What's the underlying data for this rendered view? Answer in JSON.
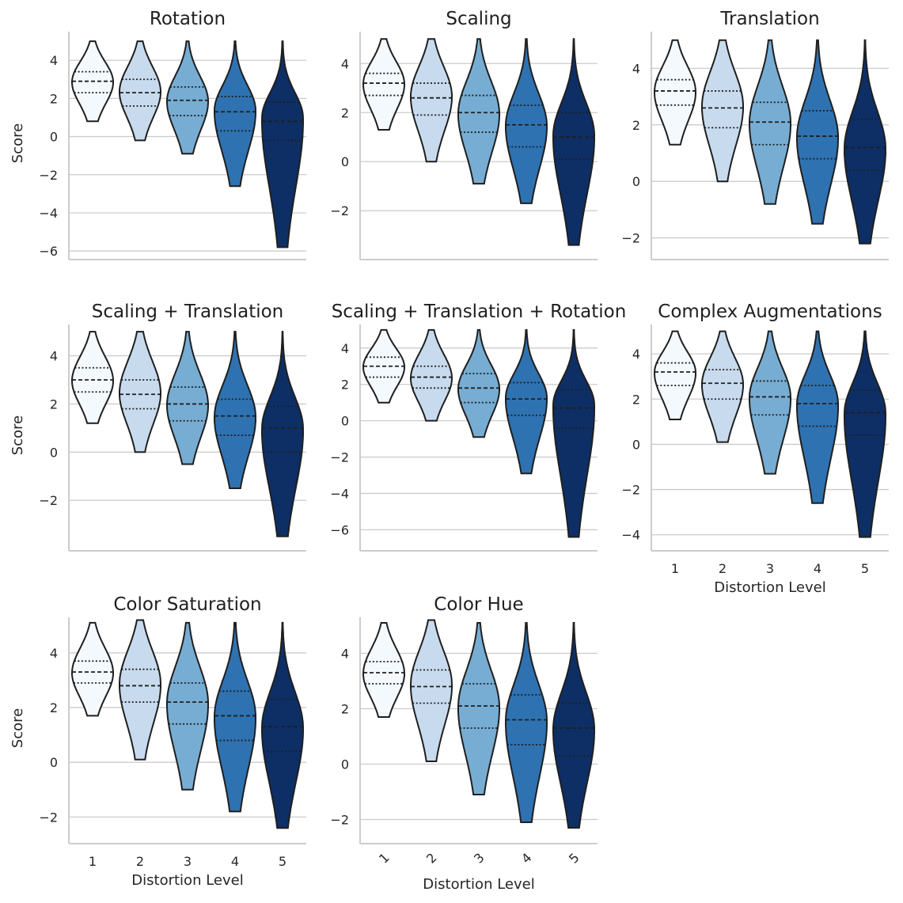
{
  "chart_data": {
    "type": "violin",
    "xlabel": "Distortion Level",
    "ylabel": "Score",
    "categories": [
      "1",
      "2",
      "3",
      "4",
      "5"
    ],
    "palette": [
      "#f4f9fe",
      "#c8dbee",
      "#77add3",
      "#2f72b1",
      "#0d2f66"
    ],
    "outline_color": "#1f1f1f",
    "grid_color": "#cccccc",
    "panels": [
      {
        "title": "Rotation",
        "ylim": [
          -6.2,
          5.5
        ],
        "yticks": [
          -6,
          -4,
          -2,
          0,
          2,
          4
        ],
        "show_ylabel": true,
        "show_xticks": false,
        "violins": [
          {
            "min": 0.8,
            "max": 5.0,
            "q1": 2.3,
            "median": 2.9,
            "q3": 3.4,
            "mode": 2.9
          },
          {
            "min": -0.2,
            "max": 5.0,
            "q1": 1.6,
            "median": 2.3,
            "q3": 3.0,
            "mode": 2.4
          },
          {
            "min": -0.9,
            "max": 5.0,
            "q1": 1.1,
            "median": 1.9,
            "q3": 2.6,
            "mode": 1.9
          },
          {
            "min": -2.6,
            "max": 5.0,
            "q1": 0.3,
            "median": 1.3,
            "q3": 2.1,
            "mode": 1.4
          },
          {
            "min": -5.8,
            "max": 5.0,
            "q1": -0.2,
            "median": 0.8,
            "q3": 1.8,
            "mode": 1.0
          }
        ]
      },
      {
        "title": "Scaling",
        "ylim": [
          -3.8,
          5.3
        ],
        "yticks": [
          -2,
          0,
          2,
          4
        ],
        "show_ylabel": false,
        "show_xticks": false,
        "violins": [
          {
            "min": 1.3,
            "max": 5.0,
            "q1": 2.7,
            "median": 3.2,
            "q3": 3.6,
            "mode": 3.2
          },
          {
            "min": 0.0,
            "max": 5.0,
            "q1": 1.9,
            "median": 2.6,
            "q3": 3.2,
            "mode": 2.7
          },
          {
            "min": -0.9,
            "max": 5.0,
            "q1": 1.2,
            "median": 2.0,
            "q3": 2.7,
            "mode": 2.0
          },
          {
            "min": -1.7,
            "max": 5.0,
            "q1": 0.6,
            "median": 1.5,
            "q3": 2.3,
            "mode": 1.5
          },
          {
            "min": -3.4,
            "max": 5.0,
            "q1": 0.1,
            "median": 1.0,
            "q3": 2.0,
            "mode": 1.1
          }
        ]
      },
      {
        "title": "Translation",
        "ylim": [
          -2.6,
          5.3
        ],
        "yticks": [
          -2,
          0,
          2,
          4
        ],
        "show_ylabel": false,
        "show_xticks": false,
        "violins": [
          {
            "min": 1.3,
            "max": 5.0,
            "q1": 2.7,
            "median": 3.2,
            "q3": 3.6,
            "mode": 3.2
          },
          {
            "min": 0.0,
            "max": 5.0,
            "q1": 1.9,
            "median": 2.6,
            "q3": 3.2,
            "mode": 2.7
          },
          {
            "min": -0.8,
            "max": 5.0,
            "q1": 1.3,
            "median": 2.1,
            "q3": 2.8,
            "mode": 2.1
          },
          {
            "min": -1.5,
            "max": 5.0,
            "q1": 0.8,
            "median": 1.6,
            "q3": 2.5,
            "mode": 1.6
          },
          {
            "min": -2.2,
            "max": 5.0,
            "q1": 0.4,
            "median": 1.2,
            "q3": 2.2,
            "mode": 1.2
          }
        ]
      },
      {
        "title": "Scaling + Translation",
        "ylim": [
          -3.9,
          5.3
        ],
        "yticks": [
          -2,
          0,
          2,
          4
        ],
        "show_ylabel": true,
        "show_xticks": false,
        "violins": [
          {
            "min": 1.2,
            "max": 5.0,
            "q1": 2.5,
            "median": 3.0,
            "q3": 3.5,
            "mode": 3.0
          },
          {
            "min": 0.0,
            "max": 5.0,
            "q1": 1.8,
            "median": 2.4,
            "q3": 3.0,
            "mode": 2.5
          },
          {
            "min": -0.5,
            "max": 5.0,
            "q1": 1.3,
            "median": 2.0,
            "q3": 2.7,
            "mode": 2.0
          },
          {
            "min": -1.5,
            "max": 5.0,
            "q1": 0.7,
            "median": 1.5,
            "q3": 2.2,
            "mode": 1.5
          },
          {
            "min": -3.5,
            "max": 5.0,
            "q1": 0.0,
            "median": 1.0,
            "q3": 1.9,
            "mode": 1.0
          }
        ]
      },
      {
        "title": "Scaling + Translation + Rotation",
        "ylim": [
          -6.9,
          5.3
        ],
        "yticks": [
          -6,
          -4,
          -2,
          0,
          2,
          4
        ],
        "show_ylabel": false,
        "show_xticks": false,
        "violins": [
          {
            "min": 1.0,
            "max": 5.0,
            "q1": 2.4,
            "median": 3.0,
            "q3": 3.5,
            "mode": 3.0
          },
          {
            "min": 0.0,
            "max": 5.0,
            "q1": 1.8,
            "median": 2.4,
            "q3": 3.0,
            "mode": 2.4
          },
          {
            "min": -0.9,
            "max": 5.0,
            "q1": 1.0,
            "median": 1.8,
            "q3": 2.6,
            "mode": 1.8
          },
          {
            "min": -2.9,
            "max": 5.0,
            "q1": 0.3,
            "median": 1.2,
            "q3": 2.1,
            "mode": 1.3
          },
          {
            "min": -6.4,
            "max": 5.0,
            "q1": -0.4,
            "median": 0.7,
            "q3": 1.7,
            "mode": 0.9
          }
        ]
      },
      {
        "title": "Complex Augmentations",
        "ylim": [
          -4.5,
          5.3
        ],
        "yticks": [
          -4,
          -2,
          0,
          2,
          4
        ],
        "show_ylabel": false,
        "show_xticks": true,
        "rotate_xticks": false,
        "show_xlabel": true,
        "violins": [
          {
            "min": 1.1,
            "max": 5.0,
            "q1": 2.6,
            "median": 3.2,
            "q3": 3.6,
            "mode": 3.2
          },
          {
            "min": 0.1,
            "max": 5.0,
            "q1": 2.0,
            "median": 2.7,
            "q3": 3.3,
            "mode": 2.7
          },
          {
            "min": -1.3,
            "max": 5.0,
            "q1": 1.3,
            "median": 2.1,
            "q3": 2.8,
            "mode": 2.1
          },
          {
            "min": -2.6,
            "max": 5.0,
            "q1": 0.8,
            "median": 1.8,
            "q3": 2.6,
            "mode": 1.8
          },
          {
            "min": -4.1,
            "max": 5.0,
            "q1": 0.4,
            "median": 1.4,
            "q3": 2.4,
            "mode": 1.4
          }
        ]
      },
      {
        "title": "Color Saturation",
        "ylim": [
          -2.8,
          5.3
        ],
        "yticks": [
          -2,
          0,
          2,
          4
        ],
        "show_ylabel": true,
        "show_xticks": true,
        "rotate_xticks": false,
        "show_xlabel": true,
        "violins": [
          {
            "min": 1.7,
            "max": 5.1,
            "q1": 2.9,
            "median": 3.3,
            "q3": 3.7,
            "mode": 3.3
          },
          {
            "min": 0.1,
            "max": 5.2,
            "q1": 2.2,
            "median": 2.8,
            "q3": 3.4,
            "mode": 2.9
          },
          {
            "min": -1.0,
            "max": 5.1,
            "q1": 1.4,
            "median": 2.2,
            "q3": 2.9,
            "mode": 2.2
          },
          {
            "min": -1.8,
            "max": 5.1,
            "q1": 0.8,
            "median": 1.7,
            "q3": 2.6,
            "mode": 1.7
          },
          {
            "min": -2.4,
            "max": 5.1,
            "q1": 0.4,
            "median": 1.3,
            "q3": 2.3,
            "mode": 1.3
          }
        ]
      },
      {
        "title": "Color Hue",
        "ylim": [
          -2.7,
          5.3
        ],
        "yticks": [
          -2,
          0,
          2,
          4
        ],
        "show_ylabel": false,
        "show_xticks": true,
        "rotate_xticks": true,
        "show_xlabel": true,
        "violins": [
          {
            "min": 1.7,
            "max": 5.1,
            "q1": 2.9,
            "median": 3.3,
            "q3": 3.7,
            "mode": 3.3
          },
          {
            "min": 0.1,
            "max": 5.2,
            "q1": 2.2,
            "median": 2.8,
            "q3": 3.4,
            "mode": 2.9
          },
          {
            "min": -1.1,
            "max": 5.1,
            "q1": 1.3,
            "median": 2.1,
            "q3": 2.9,
            "mode": 2.1
          },
          {
            "min": -2.1,
            "max": 5.1,
            "q1": 0.7,
            "median": 1.6,
            "q3": 2.5,
            "mode": 1.6
          },
          {
            "min": -2.3,
            "max": 5.1,
            "q1": 0.3,
            "median": 1.3,
            "q3": 2.2,
            "mode": 1.3
          }
        ]
      }
    ]
  }
}
